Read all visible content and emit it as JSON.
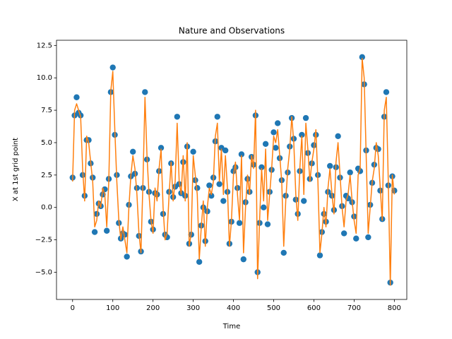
{
  "chart_data": {
    "type": "line",
    "title": "Nature and Observations",
    "x_label": "Time",
    "y_label": "X at 1st grid point",
    "x": [
      0,
      5,
      10,
      15,
      20,
      25,
      30,
      35,
      40,
      45,
      50,
      55,
      60,
      65,
      70,
      75,
      80,
      85,
      90,
      95,
      100,
      105,
      110,
      115,
      120,
      125,
      130,
      135,
      140,
      145,
      150,
      155,
      160,
      165,
      170,
      175,
      180,
      185,
      190,
      195,
      200,
      205,
      210,
      215,
      220,
      225,
      230,
      235,
      240,
      245,
      250,
      255,
      260,
      265,
      270,
      275,
      280,
      285,
      290,
      295,
      300,
      305,
      310,
      315,
      320,
      325,
      330,
      335,
      340,
      345,
      350,
      355,
      360,
      365,
      370,
      375,
      380,
      385,
      390,
      395,
      400,
      405,
      410,
      415,
      420,
      425,
      430,
      435,
      440,
      445,
      450,
      455,
      460,
      465,
      470,
      475,
      480,
      485,
      490,
      495,
      500,
      505,
      510,
      515,
      520,
      525,
      530,
      535,
      540,
      545,
      550,
      555,
      560,
      565,
      570,
      575,
      580,
      585,
      590,
      595,
      600,
      605,
      610,
      615,
      620,
      625,
      630,
      635,
      640,
      645,
      650,
      655,
      660,
      665,
      670,
      675,
      680,
      685,
      690,
      695,
      700,
      705,
      710,
      715,
      720,
      725,
      730,
      735,
      740,
      745,
      750,
      755,
      760,
      765,
      770,
      775,
      780,
      785,
      790,
      795,
      800
    ],
    "series": [
      {
        "type": "scatter",
        "color": "#1f77b4",
        "values": [
          2.3,
          7.1,
          8.5,
          7.3,
          7.1,
          2.5,
          0.9,
          5.2,
          5.2,
          3.4,
          2.3,
          -1.9,
          -0.5,
          0.3,
          0.1,
          1,
          1.4,
          -1.8,
          2.2,
          8.9,
          10.8,
          5.6,
          2.5,
          -1.2,
          -2.4,
          -2,
          -2.1,
          -3.8,
          0.2,
          2.4,
          4.3,
          2.6,
          1.5,
          -2.2,
          -3.4,
          1.5,
          8.9,
          3.7,
          1.2,
          -1.1,
          -1.7,
          1.1,
          1,
          2.8,
          4.6,
          -0.5,
          -2.1,
          -2.3,
          1.2,
          3.4,
          0.8,
          1.6,
          7,
          1.8,
          1.1,
          3.5,
          0.9,
          4.7,
          -2.8,
          -2.1,
          4.3,
          2.1,
          1.5,
          -4.2,
          -1.4,
          0,
          -2.6,
          -0.3,
          1.7,
          0.9,
          2.3,
          5.1,
          7,
          1.8,
          4.6,
          0.5,
          4.4,
          1.2,
          -2.8,
          -1.1,
          2.8,
          3.1,
          1.5,
          -1.2,
          4.1,
          -4,
          0.4,
          2.2,
          1.2,
          3.9,
          3.3,
          7.1,
          -5,
          -1.2,
          3.1,
          0,
          4.9,
          -1.3,
          1.2,
          2.9,
          5.8,
          4.6,
          6.5,
          3.8,
          2.1,
          -3.5,
          0.9,
          2.7,
          4.7,
          6.9,
          5.3,
          0.6,
          -0.5,
          2.8,
          5.6,
          0.5,
          6.9,
          4.2,
          2.2,
          3.4,
          4.8,
          5.6,
          2.5,
          -3.7,
          -1.9,
          -0.5,
          -1.1,
          1.2,
          3.2,
          0.9,
          -0.2,
          3.1,
          5.5,
          2.3,
          0.1,
          -2,
          0.9,
          0.7,
          2.7,
          0.4,
          -0.7,
          -2.4,
          3,
          2.8,
          11.6,
          9.5,
          4.4,
          -2.3,
          0.2,
          1.9,
          3.3,
          4.6,
          4.5,
          1.3,
          -0.9,
          7,
          8.9,
          1.7,
          -5.8,
          2.4,
          1.3
        ]
      },
      {
        "type": "line",
        "color": "#ff7f0e",
        "values": [
          2,
          7.5,
          8,
          7.5,
          7,
          3,
          0.5,
          5.5,
          5,
          3.5,
          2,
          -1.5,
          -1,
          0.5,
          0,
          1.5,
          1,
          -1.5,
          2,
          9,
          10.5,
          6,
          2,
          -1,
          -2.5,
          -1.5,
          -2.5,
          -3.5,
          0,
          2.5,
          4,
          3,
          1,
          -2,
          -3.5,
          2,
          8.5,
          4,
          1,
          -1,
          -2,
          1.5,
          0.5,
          3,
          4.5,
          0,
          -2.5,
          -2,
          1,
          3.5,
          0.5,
          2,
          6.5,
          2,
          1,
          4,
          0.5,
          5,
          -3,
          -2,
          4,
          2.5,
          1,
          -4,
          -1.5,
          0.5,
          -3,
          0,
          1.5,
          1,
          2,
          5.5,
          6.5,
          2,
          4.5,
          1,
          4,
          1.5,
          -3,
          -1,
          2.5,
          3.5,
          1,
          -1,
          4,
          -3.5,
          0,
          2.5,
          1,
          4,
          3,
          7.5,
          -5.5,
          -1,
          3,
          0.5,
          4.5,
          -1,
          1,
          3,
          5.5,
          5,
          6,
          4,
          2,
          -3,
          0.5,
          3,
          4.5,
          7,
          5,
          1,
          -1,
          3,
          5.5,
          1,
          6.5,
          4.5,
          2,
          3.5,
          4.5,
          6,
          2,
          -3.5,
          -2,
          0,
          -1.5,
          1.5,
          3,
          1,
          -0.5,
          3.5,
          5,
          2.5,
          0,
          -1.5,
          0.5,
          1,
          2.5,
          0.5,
          -1,
          -2,
          2.5,
          3,
          11.5,
          10,
          4,
          -2,
          0,
          2,
          3,
          5,
          4,
          1.5,
          -1,
          7.5,
          8.5,
          2,
          -6,
          2.5,
          1
        ]
      }
    ],
    "xlim": [
      -40,
      831
    ],
    "ylim": [
      -7.1,
      12.9
    ],
    "xticks": [
      0,
      100,
      200,
      300,
      400,
      500,
      600,
      700,
      800
    ],
    "yticks": [
      {
        "value": -5,
        "label": "−5.0"
      },
      {
        "value": -2.5,
        "label": "−2.5"
      },
      {
        "value": 0,
        "label": "0.0"
      },
      2.5,
      {
        "value": 5,
        "label": "5.0"
      },
      7.5,
      {
        "value": 10,
        "label": "10.0"
      },
      12.5
    ]
  }
}
